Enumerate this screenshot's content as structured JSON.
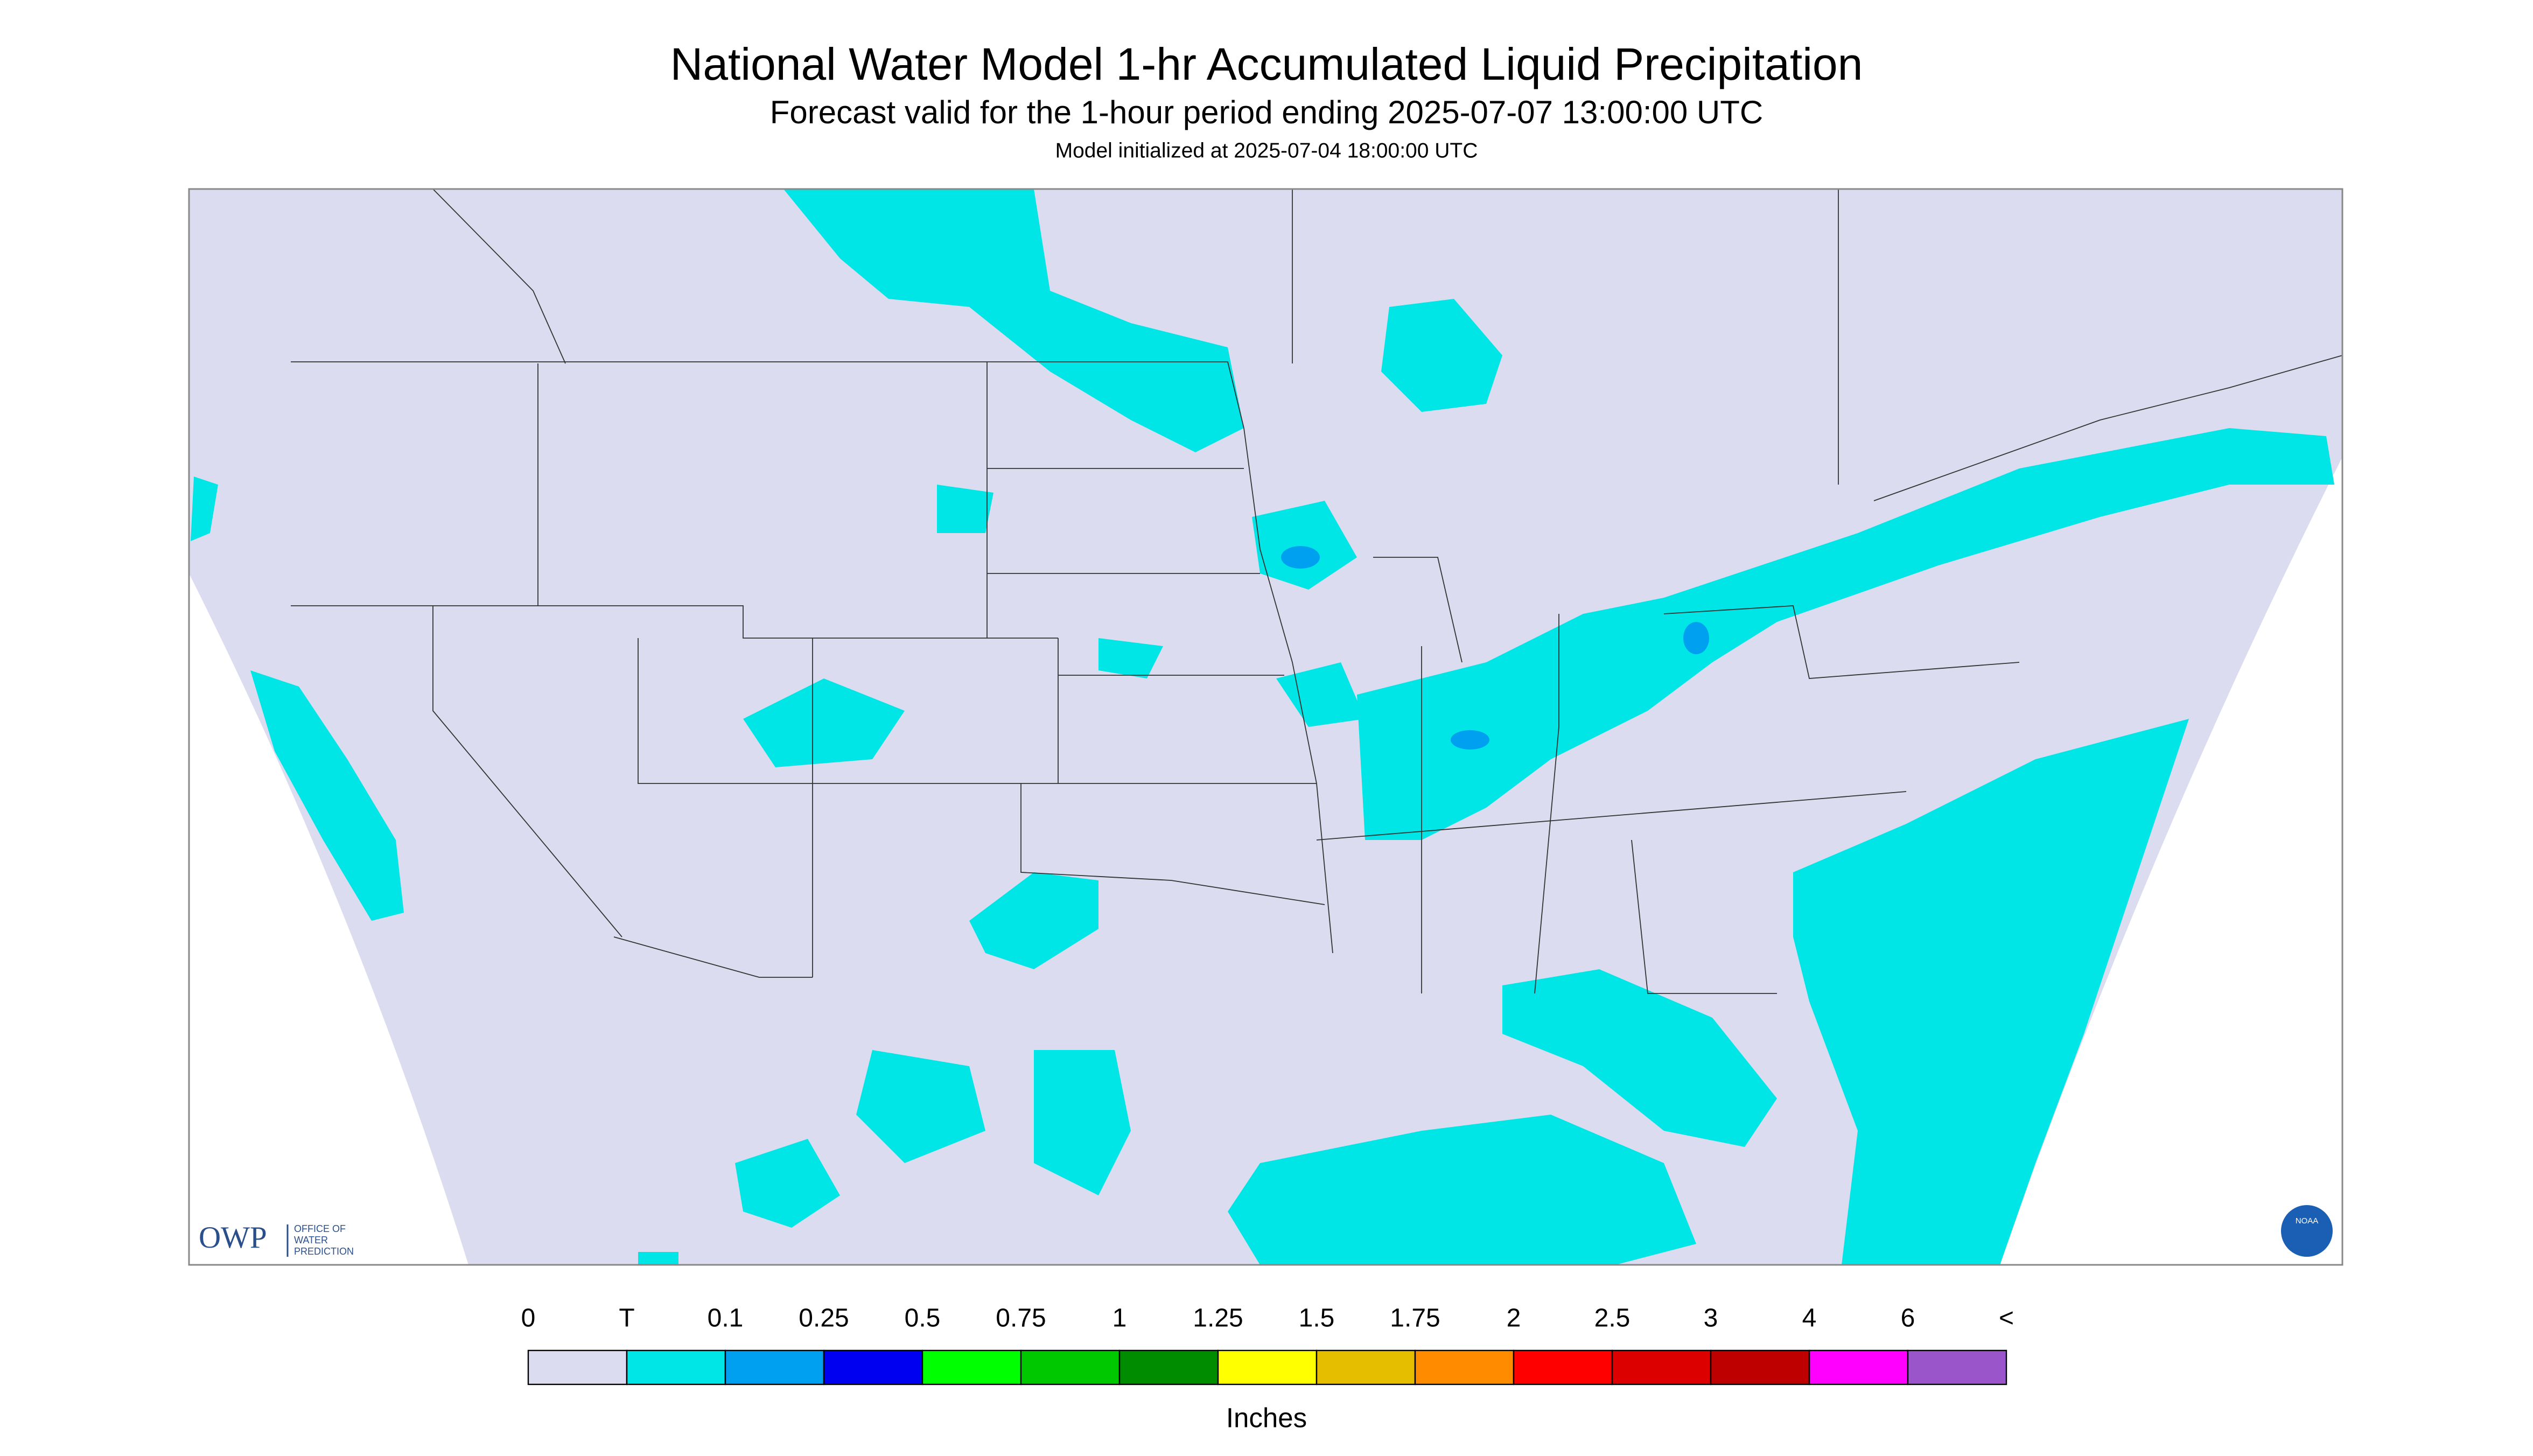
{
  "header": {
    "title": "National Water Model 1-hr Accumulated Liquid Precipitation",
    "subtitle": "Forecast valid for the 1-hour period ending 2025-07-07 13:00:00 UTC",
    "note": "Model initialized at 2025-07-04 18:00:00 UTC"
  },
  "logos": {
    "owp": "OWP",
    "owp_text": [
      "OFFICE OF",
      "WATER",
      "PREDICTION"
    ],
    "noaa": "NOAA"
  },
  "legend": {
    "labels": [
      "0",
      "T",
      "0.1",
      "0.25",
      "0.5",
      "0.75",
      "1",
      "1.25",
      "1.5",
      "1.75",
      "2",
      "2.5",
      "3",
      "4",
      "6",
      "<"
    ],
    "colors": [
      "#dcdcf0",
      "#00e5e5",
      "#00a0f0",
      "#0000f0",
      "#00ff00",
      "#00c800",
      "#008c00",
      "#ffff00",
      "#e6be00",
      "#ff8c00",
      "#ff0000",
      "#dc0000",
      "#be0000",
      "#ff00ff",
      "#9955c9"
    ],
    "unit": "Inches"
  }
}
